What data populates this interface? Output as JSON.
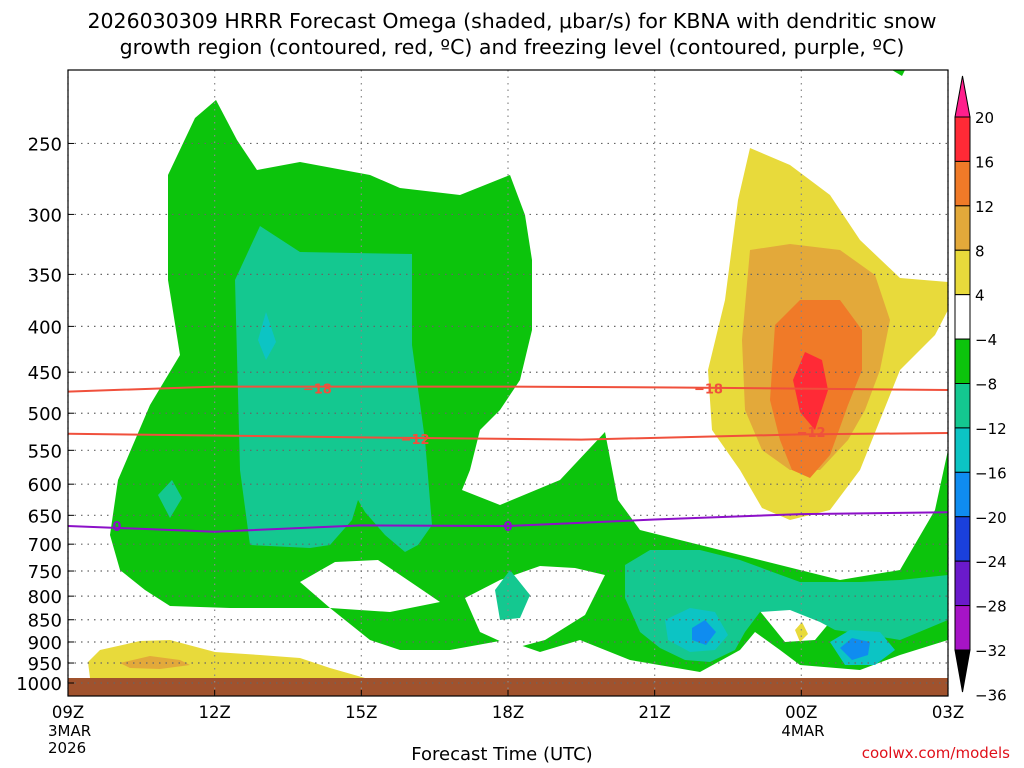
{
  "title_line1": "2026030309 HRRR Forecast Omega (shaded, μbar/s) for KBNA with dendritic snow",
  "title_line2": "growth region (contoured, red, ºC) and freezing level (contoured, purple, ºC)",
  "credit": "coolwx.com/models",
  "chart_data": {
    "type": "contour-timeseries",
    "xlabel": "Forecast Time (UTC)",
    "x_ticks": [
      {
        "hours": 0,
        "label": "09Z",
        "sub": [
          "3MAR",
          "2026"
        ]
      },
      {
        "hours": 3,
        "label": "12Z",
        "sub": []
      },
      {
        "hours": 6,
        "label": "15Z",
        "sub": []
      },
      {
        "hours": 9,
        "label": "18Z",
        "sub": []
      },
      {
        "hours": 12,
        "label": "21Z",
        "sub": []
      },
      {
        "hours": 15,
        "label": "00Z",
        "sub": [
          "4MAR"
        ]
      },
      {
        "hours": 18,
        "label": "03Z",
        "sub": []
      }
    ],
    "y_ticks_hpa": [
      250,
      300,
      350,
      400,
      450,
      500,
      550,
      600,
      650,
      700,
      750,
      800,
      850,
      900,
      950,
      1000
    ],
    "y_axis": "pressure (hPa), log scale",
    "grid": true,
    "colorbar": {
      "labels": [
        "20",
        "16",
        "12",
        "8",
        "4",
        "−4",
        "−8",
        "−12",
        "−16",
        "−20",
        "−24",
        "−28",
        "−32",
        "−36"
      ],
      "colors": [
        "#ff1f8c",
        "#ff2a36",
        "#f07a28",
        "#e3a93a",
        "#e8da3b",
        "#ffffff",
        "#0cc40c",
        "#14c890",
        "#0cc4c4",
        "#0f8cf0",
        "#1a40dc",
        "#6a1acb",
        "#a614c6",
        "#a6a6a6",
        "#000000"
      ]
    },
    "shading_colors": {
      "yellow": "#e8da3b",
      "gold": "#e3a93a",
      "orange": "#f07a28",
      "red": "#ff2a36",
      "green": "#0cc40c",
      "teal": "#14c890",
      "cyan": "#0cc4c4",
      "blue": "#0f8cf0",
      "navy": "#1a40dc",
      "ground": "#a0522d"
    },
    "contours": [
      {
        "label": "−18",
        "color": "#f0503c",
        "points": [
          [
            0,
            473
          ],
          [
            3,
            467
          ],
          [
            9,
            467
          ],
          [
            12.4,
            468
          ],
          [
            18,
            471
          ]
        ],
        "label_at": [
          [
            5.1,
            469
          ],
          [
            13.1,
            469
          ]
        ]
      },
      {
        "label": "−12",
        "color": "#f0503c",
        "points": [
          [
            0,
            527
          ],
          [
            6,
            532
          ],
          [
            10.5,
            535
          ],
          [
            15,
            528
          ],
          [
            18,
            526
          ]
        ],
        "label_at": [
          [
            7.1,
            534
          ],
          [
            15.2,
            525
          ]
        ]
      },
      {
        "label": "0",
        "color": "#8c10c8",
        "points": [
          [
            0,
            668
          ],
          [
            3,
            678
          ],
          [
            6,
            667
          ],
          [
            9,
            668
          ],
          [
            12,
            657
          ],
          [
            15,
            648
          ],
          [
            18,
            645
          ]
        ],
        "label_at": [
          [
            1.0,
            668
          ],
          [
            9.0,
            668
          ]
        ]
      }
    ]
  }
}
